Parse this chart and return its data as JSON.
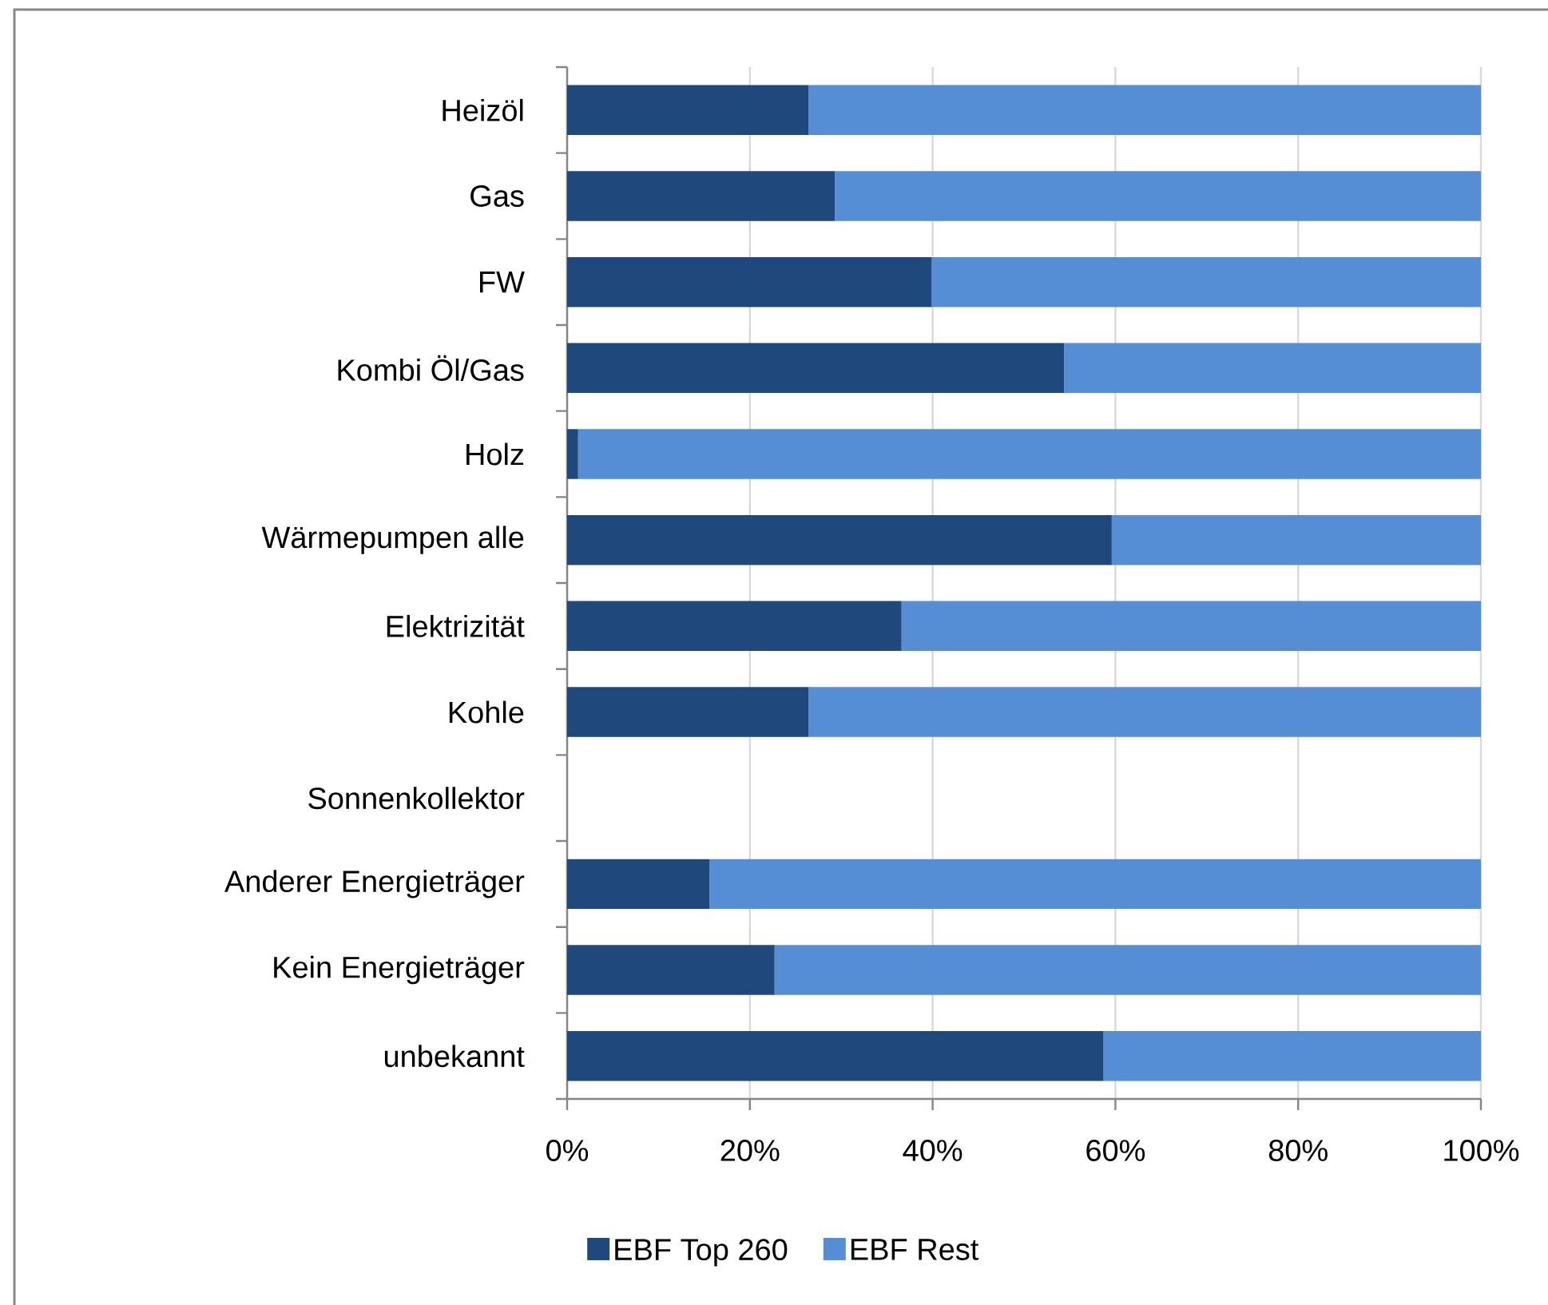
{
  "chart_data": {
    "type": "bar",
    "orientation": "horizontal",
    "stacked": true,
    "categories": [
      "Heizöl",
      "Gas",
      "FW",
      "Kombi Öl/Gas",
      "Holz",
      "Wärmepumpen alle",
      "Elektrizität",
      "Kohle",
      "Sonnenkollektor",
      "Anderer Energieträger",
      "Kein Energieträger",
      "unbekannt"
    ],
    "series": [
      {
        "name": "EBF Top 260",
        "color": "#1f497d",
        "values": [
          26.4,
          29.3,
          39.9,
          54.4,
          1.2,
          59.6,
          36.6,
          26.4,
          null,
          15.6,
          22.7,
          58.7
        ]
      },
      {
        "name": "EBF Rest",
        "color": "#558ed5",
        "values": [
          73.6,
          70.7,
          60.1,
          45.6,
          98.8,
          40.4,
          63.4,
          73.6,
          null,
          84.4,
          77.3,
          41.3
        ]
      }
    ],
    "xlim": [
      0,
      100
    ],
    "xticks": [
      {
        "value": 0,
        "label": "0%"
      },
      {
        "value": 20,
        "label": "20%"
      },
      {
        "value": 40,
        "label": "40%"
      },
      {
        "value": 60,
        "label": "60%"
      },
      {
        "value": 80,
        "label": "80%"
      },
      {
        "value": 100,
        "label": "100%"
      }
    ],
    "grid": "x",
    "legend": "bottom"
  }
}
